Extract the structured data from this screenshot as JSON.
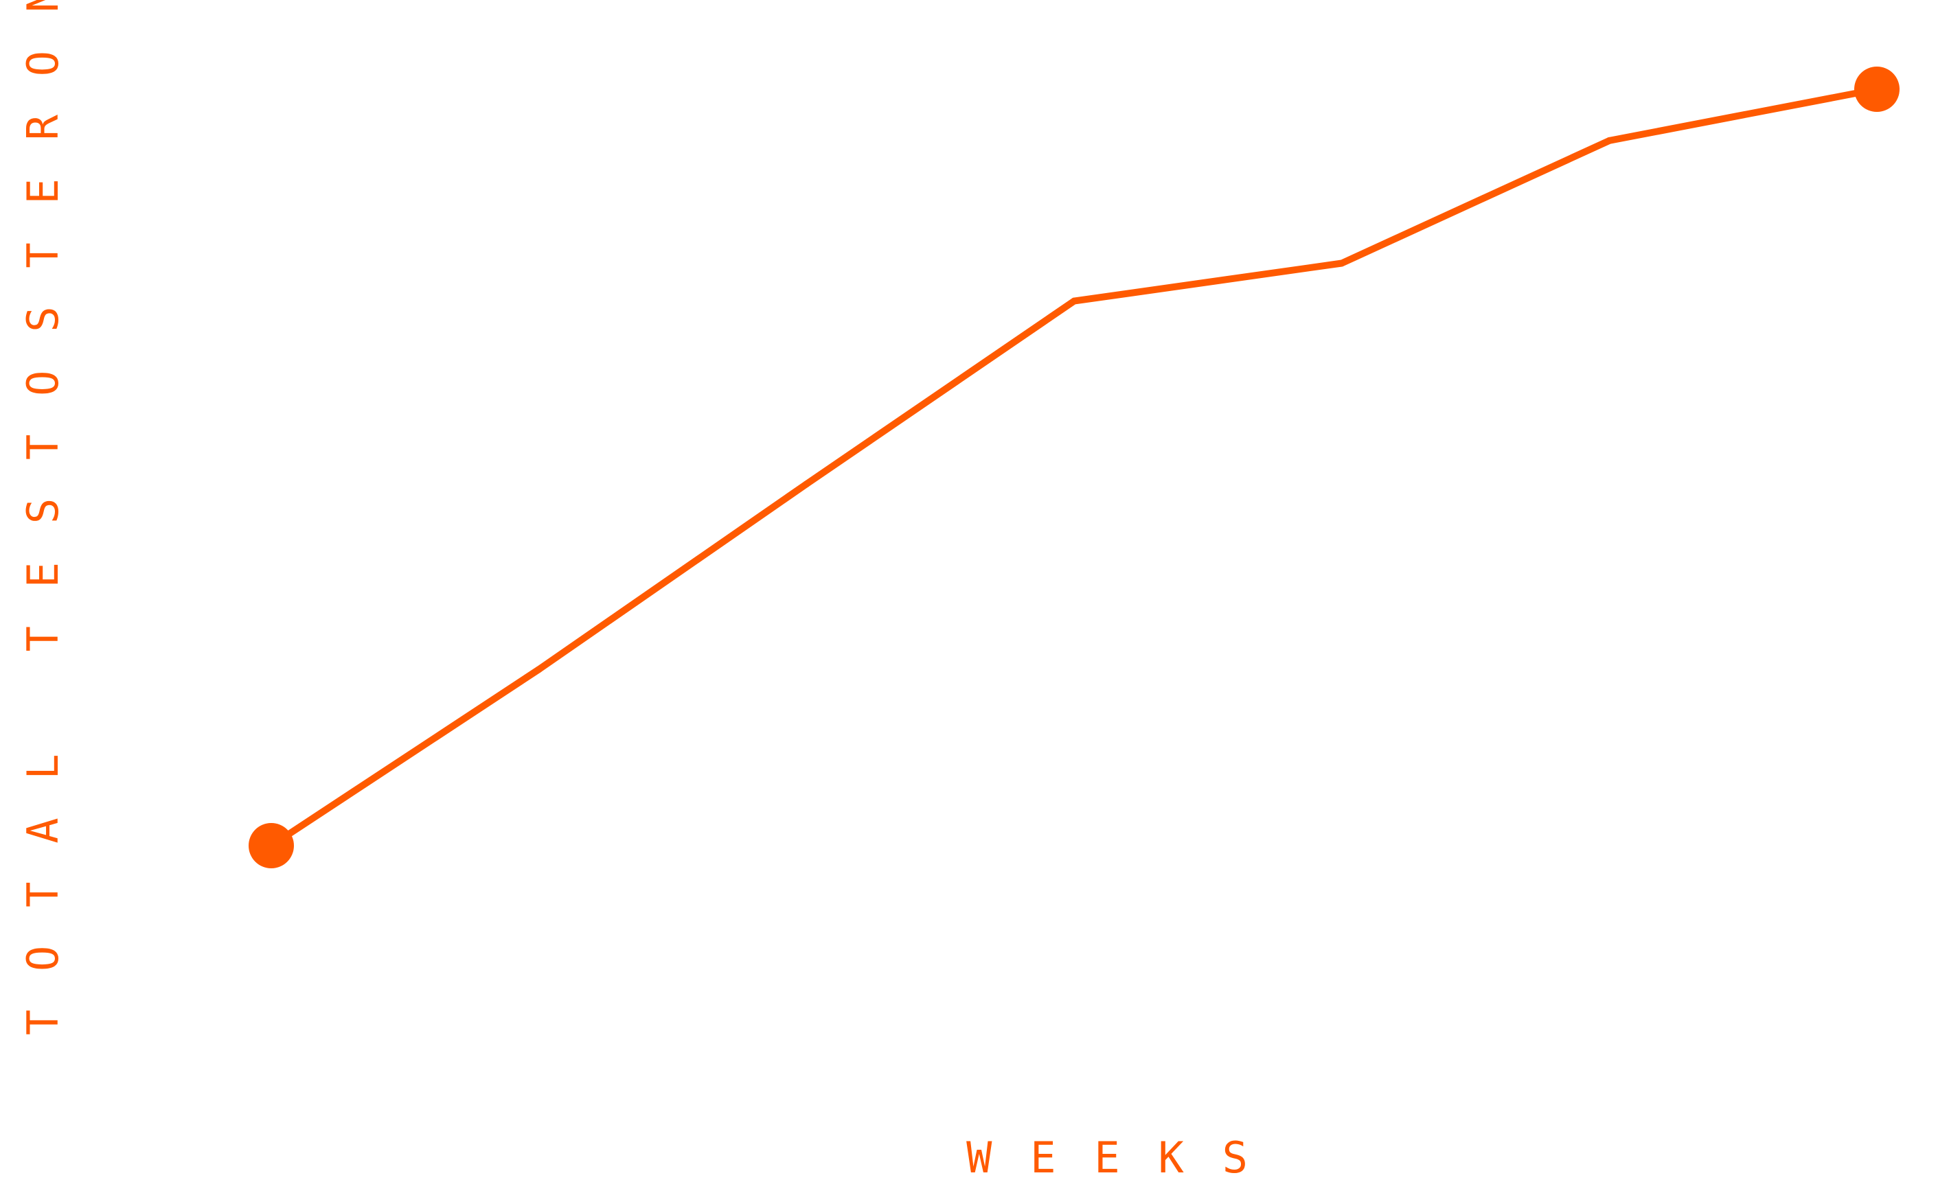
{
  "chart_data": {
    "type": "line",
    "title": "",
    "xlabel": "WEEKS",
    "ylabel": "TOTAL TESTOSTERONE",
    "grid": false,
    "legend": "none",
    "ticks_shown": false,
    "series": [
      {
        "color": "#ff5a00",
        "x": [
          0,
          1,
          2,
          3,
          4,
          5,
          6
        ],
        "y": [
          0,
          0.233,
          0.478,
          0.72,
          0.77,
          0.932,
          1.0
        ],
        "endpoint_markers": true
      }
    ],
    "xlim": [
      0,
      6
    ],
    "ylim": [
      0,
      1
    ]
  }
}
